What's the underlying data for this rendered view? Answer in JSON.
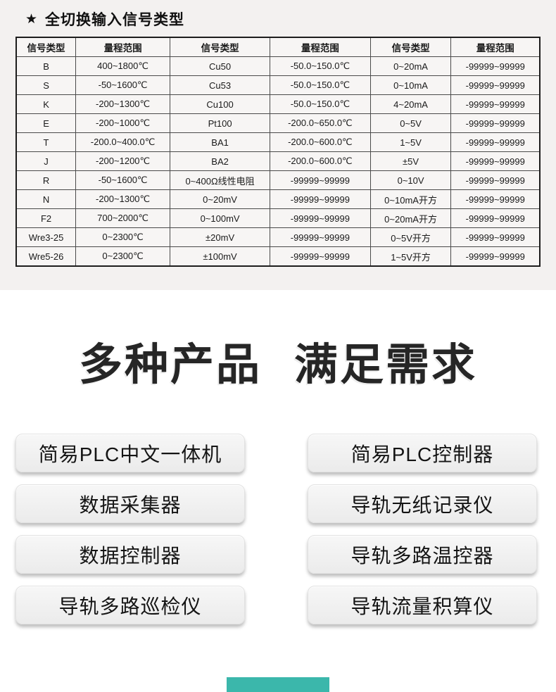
{
  "colors": {
    "section_bg": "#f3f1f0",
    "table_cell_bg": "#f7f5f4",
    "table_border_outer": "#1d1d1d",
    "table_border_inner": "#4a4a4a",
    "accent_teal": "#3bb7ab",
    "text": "#1a1a1a"
  },
  "header": {
    "star": "★",
    "title": "全切换输入信号类型"
  },
  "table": {
    "headers": [
      "信号类型",
      "量程范围",
      "信号类型",
      "量程范围",
      "信号类型",
      "量程范围"
    ],
    "rows": [
      [
        "B",
        "400~1800℃",
        "Cu50",
        "-50.0~150.0℃",
        "0~20mA",
        "-99999~99999"
      ],
      [
        "S",
        "-50~1600℃",
        "Cu53",
        "-50.0~150.0℃",
        "0~10mA",
        "-99999~99999"
      ],
      [
        "K",
        "-200~1300℃",
        "Cu100",
        "-50.0~150.0℃",
        "4~20mA",
        "-99999~99999"
      ],
      [
        "E",
        "-200~1000℃",
        "Pt100",
        "-200.0~650.0℃",
        "0~5V",
        "-99999~99999"
      ],
      [
        "T",
        "-200.0~400.0℃",
        "BA1",
        "-200.0~600.0℃",
        "1~5V",
        "-99999~99999"
      ],
      [
        "J",
        "-200~1200℃",
        "BA2",
        "-200.0~600.0℃",
        "±5V",
        "-99999~99999"
      ],
      [
        "R",
        "-50~1600℃",
        "0~400Ω线性电阻",
        "-99999~99999",
        "0~10V",
        "-99999~99999"
      ],
      [
        "N",
        "-200~1300℃",
        "0~20mV",
        "-99999~99999",
        "0~10mA开方",
        "-99999~99999"
      ],
      [
        "F2",
        "700~2000℃",
        "0~100mV",
        "-99999~99999",
        "0~20mA开方",
        "-99999~99999"
      ],
      [
        "Wre3-25",
        "0~2300℃",
        "±20mV",
        "-99999~99999",
        "0~5V开方",
        "-99999~99999"
      ],
      [
        "Wre5-26",
        "0~2300℃",
        "±100mV",
        "-99999~99999",
        "1~5V开方",
        "-99999~99999"
      ]
    ]
  },
  "heading": {
    "left": "多种产品",
    "right": "满足需求"
  },
  "products": {
    "left": [
      "简易PLC中文一体机",
      "数据采集器",
      "数据控制器",
      "导轨多路巡检仪"
    ],
    "right": [
      "简易PLC控制器",
      "导轨无纸记录仪",
      "导轨多路温控器",
      "导轨流量积算仪"
    ]
  }
}
